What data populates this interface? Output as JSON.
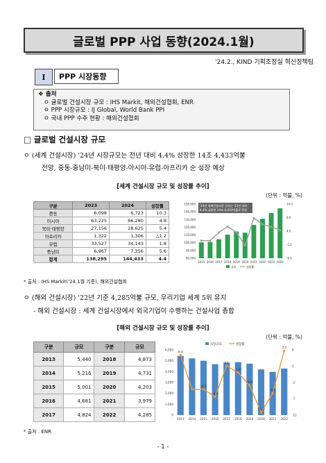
{
  "title": "글로벌 PPP 사업 동향(2024.1월)",
  "issuer": "'24.2., KIND 기획조정실 혁신정책팀",
  "section": {
    "number": "I",
    "title": "PPP 시장동향"
  },
  "sources_box": {
    "header": "❖ 출처",
    "items": [
      "ㅇ 글로벌 건설시장 규모 : IHS Markit, 해외건설협회, ENR",
      "ㅇ PPP 시장규모 : IJ Global, World Bank PPI",
      "ㅇ 국내 PPP 수주 현황 : 해외건설협회"
    ]
  },
  "heading": "□ 글로벌 건설시장 규모",
  "para1": {
    "line1": "ㅇ (세계 건설시장) '24년 시장규모는 전년 대비 4.4% 성장한 14조 4,433억불",
    "line2": "전망, 중동-중남미-북미·태평양-아시아-유럽-아프리카 순 성장 예상"
  },
  "caption1": "[세계 건설시장 규모 및 성장률 추이]",
  "unit1": "(단위 : 억불, %)",
  "table1": {
    "headers": [
      "구분",
      "2023",
      "2024",
      "성장률"
    ],
    "rows": [
      [
        "중동",
        "6,098",
        "6,723",
        "10.3"
      ],
      [
        "아시아",
        "63,225",
        "66,280",
        "4.8"
      ],
      [
        "북미·태평양",
        "27,156",
        "28,625",
        "5.4"
      ],
      [
        "아프리카",
        "1,322",
        "1,306",
        "△1.2"
      ],
      [
        "유럽",
        "33,527",
        "34,143",
        "1.8"
      ],
      [
        "중남미",
        "6,967",
        "7,356",
        "5.6"
      ],
      [
        "합계",
        "138,295",
        "144,433",
        "4.4"
      ]
    ]
  },
  "source1": "* 출처 : IHS Markit('24.1월 기준), 해외건설협회",
  "chart1_annotation": [
    "'24년 세계건설시장 규모는 '23년 대비",
    "4.4% 성장한 14조 4,433억불로 전망"
  ],
  "para2": {
    "line1": "ㅇ (해외 건설시장) '22년 기준 4,285억불 규모, 우리기업 세계 5위 유지",
    "line2": "- 해외 건설시장 : 세계 건설시장에서 외국기업이 수행하는 건설사업 총합"
  },
  "caption2": "[해외 건설시장 규모 및 성장률 추이]",
  "unit2": "(단위 : 억불, %)",
  "table2": {
    "headers": [
      "구분",
      "규모",
      "구분",
      "규모"
    ],
    "rows": [
      [
        "2013",
        "5,440",
        "2018",
        "4,873"
      ],
      [
        "2014",
        "5,216",
        "2019",
        "4,731"
      ],
      [
        "2015",
        "5,001",
        "2020",
        "4,203"
      ],
      [
        "2016",
        "4,681",
        "2021",
        "3,979"
      ],
      [
        "2017",
        "4,824",
        "2022",
        "4,285"
      ]
    ]
  },
  "source2": "* 출처 : ENR",
  "page_number": "- 1 -",
  "chart_data": [
    {
      "type": "bar",
      "title": "",
      "x": [
        "2015",
        "2016",
        "2017",
        "2018",
        "2019",
        "2020",
        "2021",
        "2022",
        "2023",
        "2024"
      ],
      "ylim": [
        80000,
        150000
      ],
      "y2lim": [
        -6.0,
        14.0
      ],
      "yticks": [
        "80,000",
        "90,000",
        "100,000",
        "110,000",
        "120,000",
        "130,000",
        "140,000",
        "150,000"
      ],
      "y2ticks": [
        "-6.0",
        "-1.0",
        "4.0",
        "9.0",
        "14.0"
      ],
      "series": [
        {
          "name": "규모",
          "kind": "bar",
          "color": "#2e9e4f",
          "values": [
            100500,
            101000,
            104500,
            110500,
            114500,
            113000,
            123000,
            131000,
            138295,
            144433
          ]
        },
        {
          "name": "성장률",
          "kind": "line",
          "color": "#9e9e9e",
          "values": [
            0.5,
            0.5,
            3.5,
            5.7,
            3.6,
            -1.3,
            8.8,
            6.5,
            5.6,
            4.4
          ]
        }
      ],
      "legend": "bottom"
    },
    {
      "type": "bar",
      "title": "",
      "x": [
        "2013",
        "2014",
        "2015",
        "2016",
        "2017",
        "2018",
        "2019",
        "2020",
        "2021",
        "2022"
      ],
      "ylim": [
        0,
        6000
      ],
      "y2lim": [
        -12,
        8
      ],
      "yticks": [
        "0",
        "1,000",
        "2,000",
        "3,000",
        "4,000",
        "5,000",
        "6,000"
      ],
      "y2ticks": [
        "-12",
        "-7",
        "-2",
        "3",
        "8"
      ],
      "series": [
        {
          "name": "시장규모",
          "kind": "bar",
          "color": "#4a86c8",
          "values": [
            5440,
            5216,
            5001,
            4681,
            4824,
            4873,
            4731,
            4203,
            3979,
            4285
          ]
        },
        {
          "name": "성장률",
          "kind": "line",
          "color": "#f0963c",
          "values": [
            6.4,
            -4.1,
            -4.1,
            -6.4,
            3.1,
            1.0,
            -2.9,
            -11.2,
            -5.3,
            7.7
          ]
        }
      ],
      "bar_labels": [
        "6.4",
        "",
        "-4.1",
        "-6.4",
        "3.1",
        "1.0",
        "-2.9",
        "-11.2",
        "-5.3",
        "7.7"
      ],
      "legend": "top"
    }
  ]
}
